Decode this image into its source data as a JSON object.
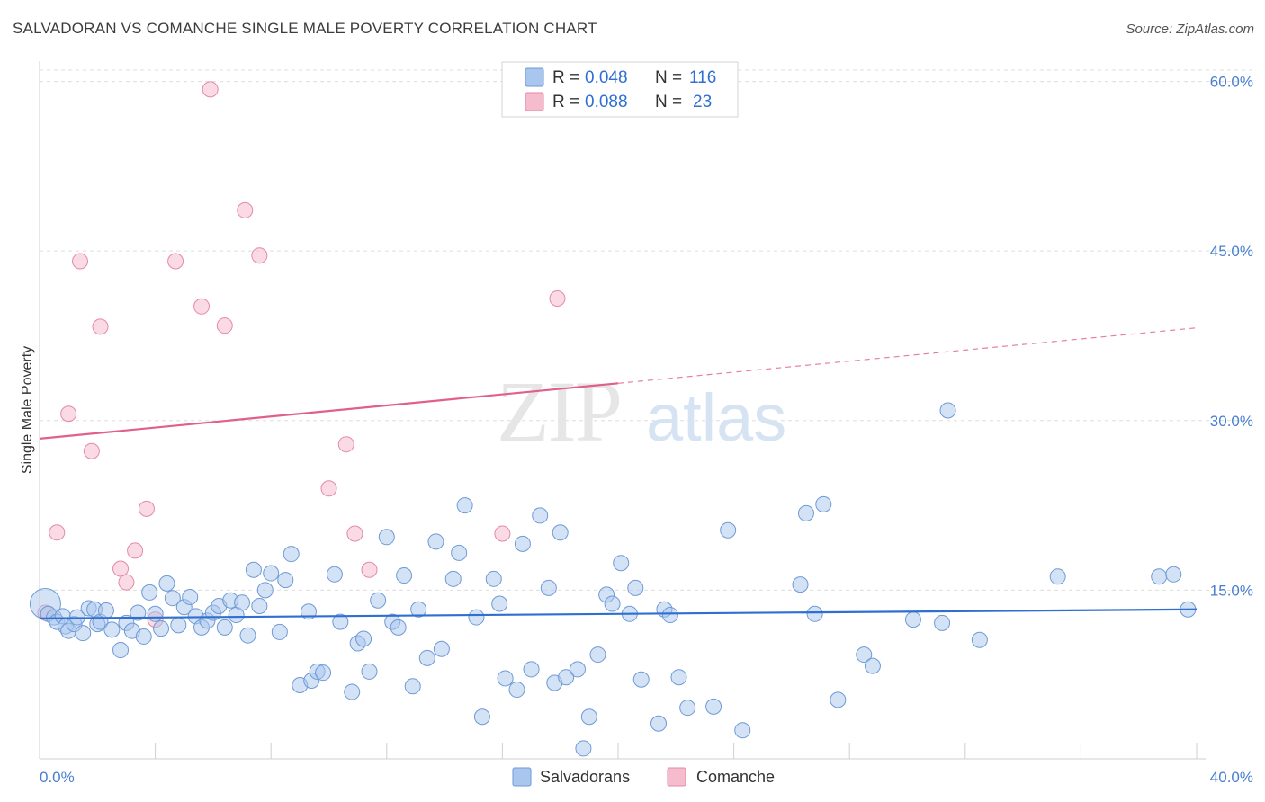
{
  "title": "SALVADORAN VS COMANCHE SINGLE MALE POVERTY CORRELATION CHART",
  "source": "Source: ZipAtlas.com",
  "watermark": {
    "part1": "ZIP",
    "part2": "atlas"
  },
  "colors": {
    "blue_fill": "#a9c6ee",
    "blue_stroke": "#6e9ad6",
    "blue_line": "#2f6fd0",
    "pink_fill": "#f5bccd",
    "pink_stroke": "#e48aa6",
    "pink_line": "#e0608a",
    "tick_text": "#4a7fd0",
    "grid": "#dddddd"
  },
  "legend": {
    "rows": [
      {
        "r_label": "R = ",
        "r_value": "0.048",
        "n_label": "N = ",
        "n_value": "116",
        "series": "blue"
      },
      {
        "r_label": "R = ",
        "r_value": "0.088",
        "n_label": "N = ",
        "n_value": "23",
        "series": "pink"
      }
    ],
    "bottom": [
      {
        "label": "Salvadorans",
        "series": "blue"
      },
      {
        "label": "Comanche",
        "series": "pink"
      }
    ]
  },
  "chart_data": {
    "type": "scatter",
    "title": "SALVADORAN VS COMANCHE SINGLE MALE POVERTY CORRELATION CHART",
    "xlabel": "",
    "ylabel": "Single Male Poverty",
    "xlim": [
      0,
      40
    ],
    "ylim": [
      0,
      61
    ],
    "x_tick_labels": [
      {
        "value": 0,
        "label": "0.0%"
      },
      {
        "value": 40,
        "label": "40.0%"
      }
    ],
    "y_tick_labels": [
      {
        "value": 15,
        "label": "15.0%"
      },
      {
        "value": 30,
        "label": "30.0%"
      },
      {
        "value": 45,
        "label": "45.0%"
      },
      {
        "value": 60,
        "label": "60.0%"
      }
    ],
    "grid": "horizontal dashed",
    "legend_placement": "top-center",
    "series": [
      {
        "name": "Salvadorans",
        "color": "#a9c6ee",
        "trend": {
          "x": [
            0,
            40
          ],
          "y": [
            12.5,
            13.3
          ],
          "style": "solid"
        },
        "points": [
          [
            0.2,
            13.8
          ],
          [
            0.3,
            12.9
          ],
          [
            0.5,
            12.6
          ],
          [
            0.6,
            12.2
          ],
          [
            0.8,
            12.7
          ],
          [
            0.9,
            11.8
          ],
          [
            1.0,
            11.4
          ],
          [
            1.2,
            12.0
          ],
          [
            1.3,
            12.6
          ],
          [
            1.5,
            11.2
          ],
          [
            1.7,
            13.4
          ],
          [
            1.9,
            13.3
          ],
          [
            2.0,
            12.0
          ],
          [
            2.1,
            12.2
          ],
          [
            2.3,
            13.2
          ],
          [
            2.5,
            11.5
          ],
          [
            2.8,
            9.7
          ],
          [
            3.0,
            12.1
          ],
          [
            3.2,
            11.4
          ],
          [
            3.4,
            13.0
          ],
          [
            3.6,
            10.9
          ],
          [
            3.8,
            14.8
          ],
          [
            4.0,
            12.9
          ],
          [
            4.2,
            11.6
          ],
          [
            4.4,
            15.6
          ],
          [
            4.6,
            14.3
          ],
          [
            4.8,
            11.9
          ],
          [
            5.0,
            13.5
          ],
          [
            5.2,
            14.4
          ],
          [
            5.4,
            12.7
          ],
          [
            5.6,
            11.7
          ],
          [
            5.8,
            12.3
          ],
          [
            6.0,
            13.0
          ],
          [
            6.2,
            13.6
          ],
          [
            6.4,
            11.7
          ],
          [
            6.6,
            14.1
          ],
          [
            6.8,
            12.8
          ],
          [
            7.0,
            13.9
          ],
          [
            7.2,
            11.0
          ],
          [
            7.4,
            16.8
          ],
          [
            7.6,
            13.6
          ],
          [
            7.8,
            15.0
          ],
          [
            8.0,
            16.5
          ],
          [
            8.3,
            11.3
          ],
          [
            8.5,
            15.9
          ],
          [
            8.7,
            18.2
          ],
          [
            9.0,
            6.6
          ],
          [
            9.3,
            13.1
          ],
          [
            9.4,
            7.0
          ],
          [
            9.6,
            7.8
          ],
          [
            9.8,
            7.7
          ],
          [
            10.2,
            16.4
          ],
          [
            10.4,
            12.2
          ],
          [
            10.8,
            6.0
          ],
          [
            11.0,
            10.3
          ],
          [
            11.2,
            10.7
          ],
          [
            11.4,
            7.8
          ],
          [
            11.7,
            14.1
          ],
          [
            12.0,
            19.7
          ],
          [
            12.2,
            12.2
          ],
          [
            12.4,
            11.7
          ],
          [
            12.6,
            16.3
          ],
          [
            12.9,
            6.5
          ],
          [
            13.1,
            13.3
          ],
          [
            13.4,
            9.0
          ],
          [
            13.7,
            19.3
          ],
          [
            13.9,
            9.8
          ],
          [
            14.3,
            16.0
          ],
          [
            14.5,
            18.3
          ],
          [
            14.7,
            22.5
          ],
          [
            15.1,
            12.6
          ],
          [
            15.3,
            3.8
          ],
          [
            15.7,
            16.0
          ],
          [
            15.9,
            13.8
          ],
          [
            16.1,
            7.2
          ],
          [
            16.5,
            6.2
          ],
          [
            16.7,
            19.1
          ],
          [
            17.0,
            8.0
          ],
          [
            17.3,
            21.6
          ],
          [
            17.6,
            15.2
          ],
          [
            17.8,
            6.8
          ],
          [
            18.0,
            20.1
          ],
          [
            18.2,
            7.3
          ],
          [
            18.6,
            8.0
          ],
          [
            18.8,
            1.0
          ],
          [
            19.0,
            3.8
          ],
          [
            19.3,
            9.3
          ],
          [
            19.6,
            14.6
          ],
          [
            19.8,
            13.8
          ],
          [
            20.1,
            17.4
          ],
          [
            20.4,
            12.9
          ],
          [
            20.6,
            15.2
          ],
          [
            20.8,
            7.1
          ],
          [
            21.4,
            3.2
          ],
          [
            21.6,
            13.3
          ],
          [
            21.8,
            12.8
          ],
          [
            22.1,
            7.3
          ],
          [
            22.4,
            4.6
          ],
          [
            23.3,
            4.7
          ],
          [
            23.8,
            20.3
          ],
          [
            24.3,
            2.6
          ],
          [
            26.3,
            15.5
          ],
          [
            26.5,
            21.8
          ],
          [
            26.8,
            12.9
          ],
          [
            27.1,
            22.6
          ],
          [
            27.6,
            5.3
          ],
          [
            28.5,
            9.3
          ],
          [
            28.8,
            8.3
          ],
          [
            30.2,
            12.4
          ],
          [
            31.2,
            12.1
          ],
          [
            31.4,
            30.9
          ],
          [
            32.5,
            10.6
          ],
          [
            35.2,
            16.2
          ],
          [
            38.7,
            16.2
          ],
          [
            39.2,
            16.4
          ],
          [
            39.7,
            13.3
          ]
        ]
      },
      {
        "name": "Comanche",
        "color": "#f5bccd",
        "trend": {
          "x": [
            0,
            40
          ],
          "y": [
            28.4,
            38.2
          ],
          "solid_until_x": 20
        },
        "points": [
          [
            0.2,
            13.0
          ],
          [
            0.6,
            20.1
          ],
          [
            1.0,
            30.6
          ],
          [
            1.4,
            44.1
          ],
          [
            1.8,
            27.3
          ],
          [
            2.1,
            38.3
          ],
          [
            2.8,
            16.9
          ],
          [
            3.0,
            15.7
          ],
          [
            3.3,
            18.5
          ],
          [
            3.7,
            22.2
          ],
          [
            4.0,
            12.4
          ],
          [
            4.7,
            44.1
          ],
          [
            5.6,
            40.1
          ],
          [
            5.9,
            59.3
          ],
          [
            6.4,
            38.4
          ],
          [
            7.1,
            48.6
          ],
          [
            7.6,
            44.6
          ],
          [
            10.0,
            24.0
          ],
          [
            10.6,
            27.9
          ],
          [
            10.9,
            20.0
          ],
          [
            11.4,
            16.8
          ],
          [
            16.0,
            20.0
          ],
          [
            17.9,
            40.8
          ]
        ]
      }
    ]
  }
}
